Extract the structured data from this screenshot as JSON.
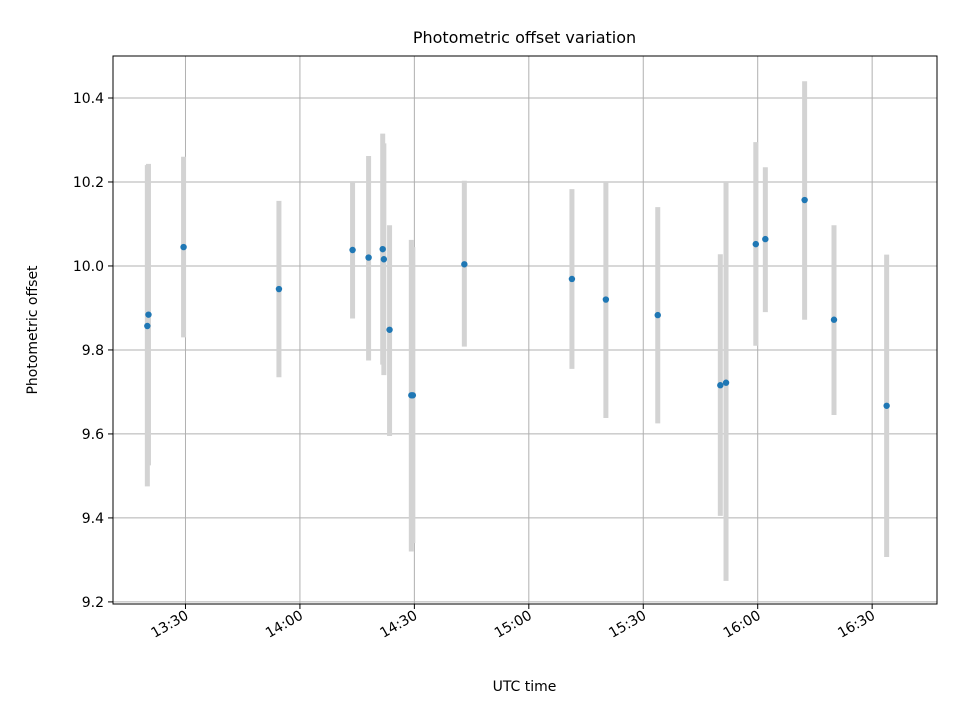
{
  "chart_data": {
    "type": "scatter",
    "title": "Photometric offset variation",
    "xlabel": "UTC time",
    "ylabel": "Photometric offset",
    "x_unit": "time (HH:MM UTC)",
    "xlim": [
      "13:11",
      "16:47"
    ],
    "ylim": [
      9.195,
      10.5
    ],
    "x_ticks": [
      "13:30",
      "14:00",
      "14:30",
      "15:00",
      "15:30",
      "16:00",
      "16:30"
    ],
    "y_ticks": [
      9.2,
      9.4,
      9.6,
      9.8,
      10.0,
      10.2,
      10.4
    ],
    "y_tick_labels": [
      "9.2",
      "9.4",
      "9.6",
      "9.8",
      "10.0",
      "10.2",
      "10.4"
    ],
    "x_tick_rotation_deg": 30,
    "grid": true,
    "marker_color": "#1f77b4",
    "errorbar_color": "#d3d3d3",
    "points": [
      {
        "time": "13:20.0",
        "y": 9.857,
        "yerr_low": 9.475,
        "yerr_high": 10.24
      },
      {
        "time": "13:20.3",
        "y": 9.884,
        "yerr_low": 9.525,
        "yerr_high": 10.243
      },
      {
        "time": "13:29.5",
        "y": 10.045,
        "yerr_low": 9.83,
        "yerr_high": 10.26
      },
      {
        "time": "13:54.5",
        "y": 9.945,
        "yerr_low": 9.735,
        "yerr_high": 10.155
      },
      {
        "time": "14:13.8",
        "y": 10.038,
        "yerr_low": 9.875,
        "yerr_high": 10.2
      },
      {
        "time": "14:18.0",
        "y": 10.02,
        "yerr_low": 9.775,
        "yerr_high": 10.262
      },
      {
        "time": "14:21.7",
        "y": 10.04,
        "yerr_low": 9.765,
        "yerr_high": 10.315
      },
      {
        "time": "14:22.0",
        "y": 10.016,
        "yerr_low": 9.74,
        "yerr_high": 10.292
      },
      {
        "time": "14:23.5",
        "y": 9.848,
        "yerr_low": 9.595,
        "yerr_high": 10.097
      },
      {
        "time": "14:29.2",
        "y": 9.692,
        "yerr_low": 9.32,
        "yerr_high": 10.062
      },
      {
        "time": "14:29.6",
        "y": 9.692,
        "yerr_low": 9.34,
        "yerr_high": 10.045
      },
      {
        "time": "14:43.1",
        "y": 10.004,
        "yerr_low": 9.808,
        "yerr_high": 10.203
      },
      {
        "time": "15:11.3",
        "y": 9.969,
        "yerr_low": 9.755,
        "yerr_high": 10.183
      },
      {
        "time": "15:20.2",
        "y": 9.92,
        "yerr_low": 9.638,
        "yerr_high": 10.2
      },
      {
        "time": "15:33.8",
        "y": 9.883,
        "yerr_low": 9.625,
        "yerr_high": 10.14
      },
      {
        "time": "15:50.2",
        "y": 9.716,
        "yerr_low": 9.405,
        "yerr_high": 10.028
      },
      {
        "time": "15:51.7",
        "y": 9.722,
        "yerr_low": 9.25,
        "yerr_high": 10.2
      },
      {
        "time": "15:59.5",
        "y": 10.052,
        "yerr_low": 9.81,
        "yerr_high": 10.295
      },
      {
        "time": "16:02.0",
        "y": 10.064,
        "yerr_low": 9.89,
        "yerr_high": 10.235
      },
      {
        "time": "16:12.3",
        "y": 10.157,
        "yerr_low": 9.872,
        "yerr_high": 10.44
      },
      {
        "time": "16:20.0",
        "y": 9.872,
        "yerr_low": 9.645,
        "yerr_high": 10.097
      },
      {
        "time": "16:33.8",
        "y": 9.667,
        "yerr_low": 9.307,
        "yerr_high": 10.027
      }
    ]
  }
}
